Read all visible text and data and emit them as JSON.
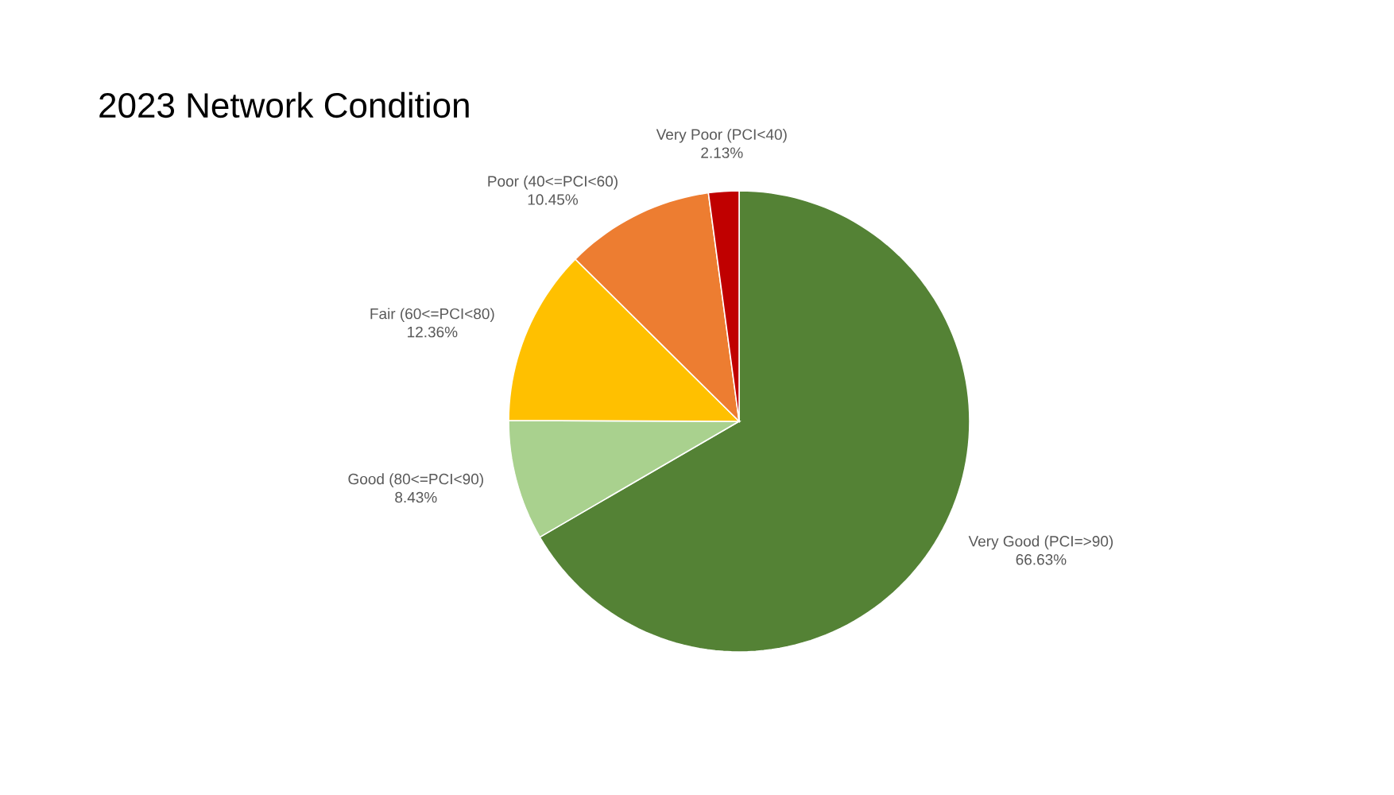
{
  "chart_data": {
    "type": "pie",
    "title": "2023 Network Condition",
    "categories": [
      "Very Good (PCI=>90)",
      "Good (80<=PCI<90)",
      "Fair (60<=PCI<80)",
      "Poor (40<=PCI<60)",
      "Very Poor (PCI<40)"
    ],
    "values": [
      66.63,
      8.43,
      12.36,
      10.45,
      2.13
    ],
    "value_labels": [
      "66.63%",
      "8.43%",
      "12.36%",
      "10.45%",
      "2.13%"
    ],
    "colors": [
      "#548235",
      "#a9d18e",
      "#ffc000",
      "#ed7d31",
      "#c00000"
    ]
  }
}
